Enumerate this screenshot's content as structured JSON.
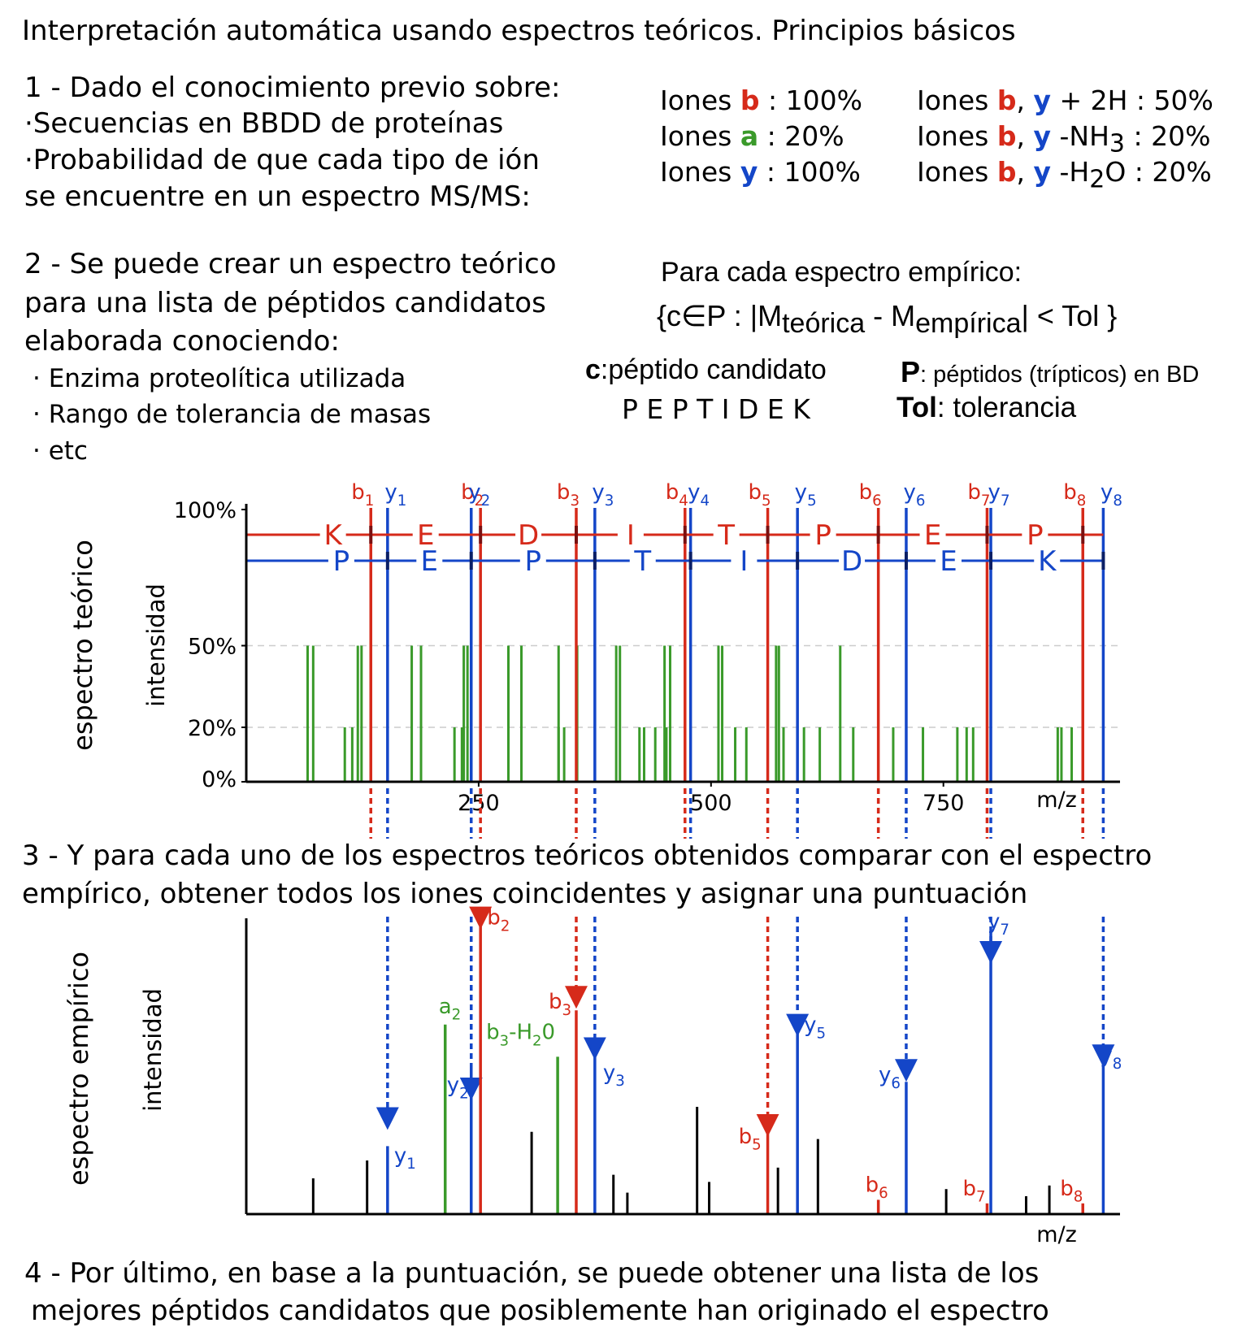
{
  "title": "Interpretación automática usando espectros teóricos. Principios básicos",
  "step1": {
    "line1": "1 - Dado el conocimiento previo sobre:",
    "line2": "·Secuencias en BBDD de proteínas",
    "line3": "·Probabilidad de que cada tipo de ión",
    "line4": "se encuentre en un espectro MS/MS:"
  },
  "ion_probs": {
    "iones": "Iones",
    "b": "b",
    "a": "a",
    "y": "y",
    "b_val": ": 100%",
    "a_val": ": 20%",
    "y_val": ": 100%",
    "comma": ",",
    "by2h_val": "+ 2H : 50%",
    "nh3_pre": "-NH",
    "nh3_sub": "3",
    "nh3_val": ": 20%",
    "h2o_pre": "-H",
    "h2o_sub": "2",
    "h2o_post": "O : 20%"
  },
  "step2": {
    "line1": "2 - Se puede crear un espectro teórico",
    "line2": "para una lista de péptidos candidatos",
    "line3": "elaborada conociendo:",
    "b1": "· Enzima proteolítica utilizada",
    "b2": "· Rango de tolerancia de masas",
    "b3": "· etc"
  },
  "formula": {
    "intro": "Para cada espectro empírico:",
    "open": "{c∈P : |M",
    "sub1": "teórica",
    "minus": " - M",
    "sub2": "empírica",
    "close": "| < Tol }",
    "c_key": "c",
    "c_def": ":péptido candidato",
    "peptide": "P E P T I D E K",
    "p_key": "P",
    "p_def": ": péptidos (trípticos) en BD",
    "tol_key": "Tol",
    "tol_def": ": tolerancia"
  },
  "step3": {
    "line1": "3 - Y para cada uno de los espectros teóricos obtenidos comparar con el espectro",
    "line2": "empírico, obtener todos los iones coincidentes y asignar una puntuación"
  },
  "step4": {
    "line1": "4 - Por último, en base a la puntuación, se puede obtener una lista de los",
    "line2": "mejores péptidos candidatos que posiblemente han originado el espectro"
  },
  "colors": {
    "b_ion": "#d62a1a",
    "y_ion": "#1446c8",
    "a_ion": "#3a9a2a",
    "axis": "#000000"
  },
  "chart_data": [
    {
      "type": "bar",
      "ylabel_outer": "espectro teórico",
      "ylabel": "intensidad",
      "xlabel": "m/z",
      "y_ticks": [
        "100%",
        "50%",
        "20%",
        "0%"
      ],
      "x_ticks": [
        "250",
        "500",
        "750"
      ],
      "xlim": [
        0,
        940
      ],
      "grid": "dashed at 50% and 20%",
      "b_sequence": [
        "K",
        "E",
        "D",
        "I",
        "T",
        "P",
        "E",
        "P"
      ],
      "y_sequence": [
        "P",
        "E",
        "P",
        "T",
        "I",
        "D",
        "E",
        "K"
      ],
      "b_ions": [
        {
          "name": "b",
          "sub": "1",
          "mz": 134,
          "intensity": 100
        },
        {
          "name": "b",
          "sub": "2",
          "mz": 252,
          "intensity": 100
        },
        {
          "name": "b",
          "sub": "3",
          "mz": 355,
          "intensity": 100
        },
        {
          "name": "b",
          "sub": "4",
          "mz": 472,
          "intensity": 100
        },
        {
          "name": "b",
          "sub": "5",
          "mz": 561,
          "intensity": 100
        },
        {
          "name": "b",
          "sub": "6",
          "mz": 680,
          "intensity": 100
        },
        {
          "name": "b",
          "sub": "7",
          "mz": 797,
          "intensity": 100
        },
        {
          "name": "b",
          "sub": "8",
          "mz": 900,
          "intensity": 100
        }
      ],
      "y_ions": [
        {
          "name": "y",
          "sub": "1",
          "mz": 152,
          "intensity": 100
        },
        {
          "name": "y",
          "sub": "2",
          "mz": 242,
          "intensity": 100
        },
        {
          "name": "y",
          "sub": "3",
          "mz": 375,
          "intensity": 100
        },
        {
          "name": "y",
          "sub": "4",
          "mz": 478,
          "intensity": 100
        },
        {
          "name": "y",
          "sub": "5",
          "mz": 593,
          "intensity": 100
        },
        {
          "name": "y",
          "sub": "6",
          "mz": 710,
          "intensity": 100
        },
        {
          "name": "y",
          "sub": "7",
          "mz": 801,
          "intensity": 100
        },
        {
          "name": "y",
          "sub": "8",
          "mz": 922,
          "intensity": 100
        }
      ],
      "other_ions_50": [
        66,
        72,
        120,
        124,
        178,
        188,
        234,
        238,
        282,
        296,
        336,
        356,
        398,
        402,
        450,
        456,
        508,
        512,
        570,
        573,
        639
      ],
      "other_ions_20": [
        106,
        114,
        224,
        232,
        336,
        342,
        423,
        428,
        440,
        452,
        526,
        538,
        578,
        600,
        617,
        653,
        696,
        728,
        765,
        775,
        782,
        873,
        877,
        888
      ]
    },
    {
      "type": "bar",
      "ylabel_outer": "espectro empírico",
      "ylabel": "intensidad",
      "xlabel": "m/z",
      "xlim": [
        0,
        940
      ],
      "matched": [
        {
          "name": "y",
          "sub": "1",
          "mz": 152,
          "intensity": 19
        },
        {
          "name": "a",
          "sub": "2",
          "mz": 214,
          "intensity": 53
        },
        {
          "name": "y",
          "sub": "2",
          "mz": 242,
          "intensity": 41
        },
        {
          "name": "b",
          "sub": "2",
          "mz": 252,
          "intensity": 81
        },
        {
          "name": "b",
          "sub": "3",
          "mz": 355,
          "intensity": 57
        },
        {
          "name": "b3-H20",
          "label_pre": "b",
          "label_sub": "3",
          "label_post": "-H",
          "label_sub2": "2",
          "label_post2": "0",
          "mz": 335,
          "intensity": 44
        },
        {
          "name": "y",
          "sub": "3",
          "mz": 375,
          "intensity": 44
        },
        {
          "name": "b",
          "sub": "5",
          "mz": 561,
          "intensity": 23
        },
        {
          "name": "y",
          "sub": "5",
          "mz": 593,
          "intensity": 51
        },
        {
          "name": "b",
          "sub": "6",
          "mz": 680,
          "intensity": 4
        },
        {
          "name": "y",
          "sub": "6",
          "mz": 710,
          "intensity": 37
        },
        {
          "name": "y",
          "sub": "7",
          "mz": 801,
          "intensity": 79
        },
        {
          "name": "b",
          "sub": "7",
          "mz": 797,
          "intensity": 3
        },
        {
          "name": "b",
          "sub": "8",
          "mz": 900,
          "intensity": 3
        },
        {
          "name": "y",
          "sub": "8",
          "mz": 922,
          "intensity": 42
        }
      ],
      "unmatched": [
        {
          "mz": 72,
          "intensity": 10
        },
        {
          "mz": 130,
          "intensity": 15
        },
        {
          "mz": 307,
          "intensity": 23
        },
        {
          "mz": 395,
          "intensity": 11
        },
        {
          "mz": 410,
          "intensity": 6
        },
        {
          "mz": 485,
          "intensity": 30
        },
        {
          "mz": 498,
          "intensity": 9
        },
        {
          "mz": 572,
          "intensity": 13
        },
        {
          "mz": 615,
          "intensity": 21
        },
        {
          "mz": 753,
          "intensity": 7
        },
        {
          "mz": 839,
          "intensity": 5
        },
        {
          "mz": 864,
          "intensity": 8
        }
      ]
    }
  ]
}
